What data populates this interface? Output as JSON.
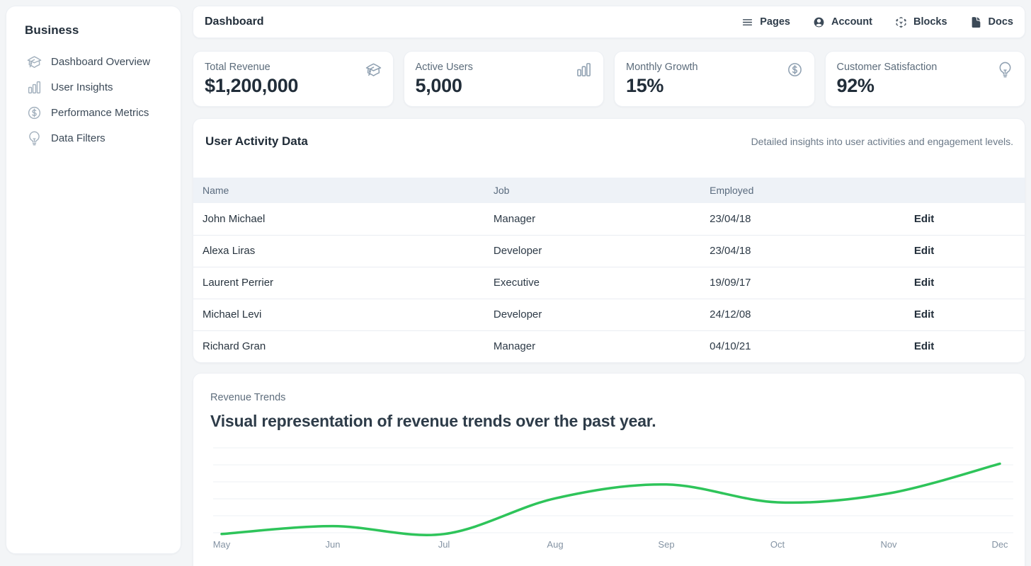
{
  "colors": {
    "page_bg": "#f3f5f7",
    "line_green": "#2ec45a",
    "grid_line": "#eef1f5",
    "dark_text": "#263238"
  },
  "sidebar": {
    "title": "Business",
    "items": [
      {
        "label": "Dashboard Overview",
        "icon": "academic-cap-icon"
      },
      {
        "label": "User Insights",
        "icon": "chart-bar-icon"
      },
      {
        "label": "Performance Metrics",
        "icon": "currency-dollar-icon"
      },
      {
        "label": "Data Filters",
        "icon": "light-bulb-icon"
      }
    ]
  },
  "topbar": {
    "title": "Dashboard",
    "links": [
      {
        "label": "Pages",
        "icon": "menu-icon"
      },
      {
        "label": "Account",
        "icon": "user-circle-icon"
      },
      {
        "label": "Blocks",
        "icon": "cube-transparent-icon"
      },
      {
        "label": "Docs",
        "icon": "document-icon"
      }
    ]
  },
  "stats": [
    {
      "label": "Total Revenue",
      "value": "$1,200,000",
      "icon": "academic-cap-icon"
    },
    {
      "label": "Active Users",
      "value": "5,000",
      "icon": "chart-bar-icon"
    },
    {
      "label": "Monthly Growth",
      "value": "15%",
      "icon": "currency-dollar-icon"
    },
    {
      "label": "Customer Satisfaction",
      "value": "92%",
      "icon": "light-bulb-icon"
    }
  ],
  "table_section": {
    "title": "User Activity Data",
    "subtitle": "Detailed insights into user activities and engagement levels.",
    "columns": [
      "Name",
      "Job",
      "Employed"
    ],
    "action_label": "Edit",
    "rows": [
      {
        "name": "John Michael",
        "job": "Manager",
        "employed": "23/04/18"
      },
      {
        "name": "Alexa Liras",
        "job": "Developer",
        "employed": "23/04/18"
      },
      {
        "name": "Laurent Perrier",
        "job": "Executive",
        "employed": "19/09/17"
      },
      {
        "name": "Michael Levi",
        "job": "Developer",
        "employed": "24/12/08"
      },
      {
        "name": "Richard Gran",
        "job": "Manager",
        "employed": "04/10/21"
      }
    ]
  },
  "chart_section": {
    "eyebrow": "Revenue Trends",
    "heading": "Visual representation of revenue trends over the past year."
  },
  "chart_data": {
    "type": "line",
    "title": "Revenue Trends",
    "categories": [
      "May",
      "Jun",
      "Jul",
      "Aug",
      "Sep",
      "Oct",
      "Nov",
      "Dec"
    ],
    "values": [
      8,
      16,
      8,
      44,
      58,
      40,
      49,
      79
    ],
    "xlabel": "",
    "ylabel": "",
    "ylim": [
      0,
      100
    ],
    "smooth": true,
    "grid": "horizontal-only",
    "gridline_count": 6,
    "legend_position": "none",
    "line_color": "#2ec45a",
    "line_width": 3.5
  }
}
